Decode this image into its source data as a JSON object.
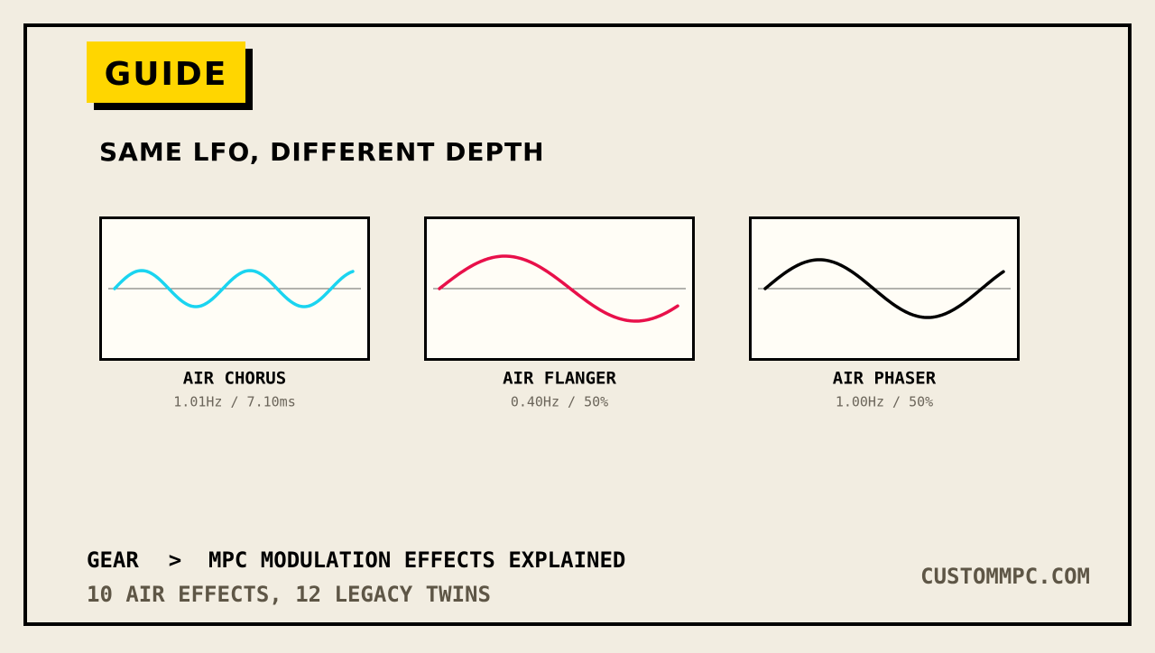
{
  "badge": "GUIDE",
  "heading": "SAME LFO, DIFFERENT DEPTH",
  "panels": [
    {
      "name": "AIR CHORUS",
      "params": "1.01Hz / 7.10ms"
    },
    {
      "name": "AIR FLANGER",
      "params": "0.40Hz / 50%"
    },
    {
      "name": "AIR PHASER",
      "params": "1.00Hz / 50%"
    }
  ],
  "footer": {
    "breadcrumb": [
      "GEAR",
      "MPC MODULATION EFFECTS EXPLAINED"
    ],
    "separator": ">",
    "subtitle": "10 AIR EFFECTS, 12 LEGACY TWINS",
    "site": "CUSTOMMPC.COM"
  }
}
